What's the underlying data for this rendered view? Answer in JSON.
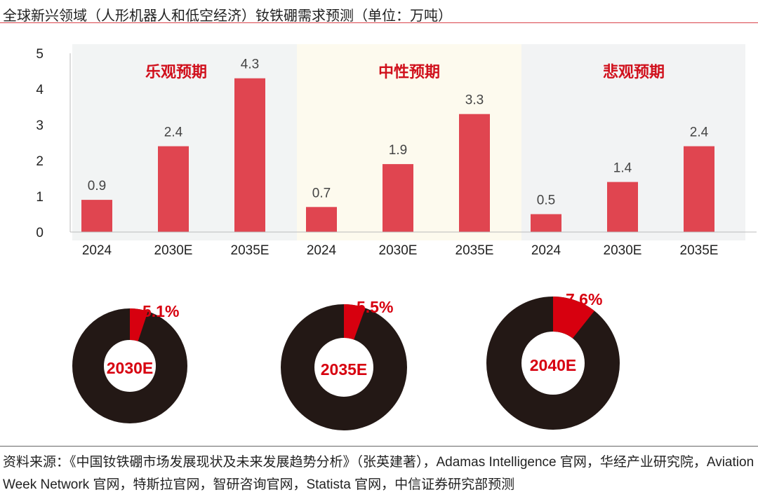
{
  "title": "全球新兴领域（人形机器人和低空经济）钕铁硼需求预测（单位：万吨）",
  "colors": {
    "bar": "#e04550",
    "scenario_label": "#d0101c",
    "donut_dark": "#231815",
    "donut_red": "#d7000f",
    "axis": "#222"
  },
  "chart_data": [
    {
      "type": "bar",
      "title": "",
      "ylim": [
        0,
        5
      ],
      "yticks": [
        0,
        1,
        2,
        3,
        4,
        5
      ],
      "grid": false,
      "groups": [
        {
          "name": "乐观预期",
          "background": "#f2f4f4",
          "categories": [
            "2024",
            "2030E",
            "2035E"
          ],
          "values": [
            0.9,
            2.4,
            4.3
          ],
          "labels": [
            "0.9",
            "2.4",
            "4.3"
          ]
        },
        {
          "name": "中性预期",
          "background": "#fdfaee",
          "categories": [
            "2024",
            "2030E",
            "2035E"
          ],
          "values": [
            0.7,
            1.9,
            3.3
          ],
          "labels": [
            "0.7",
            "1.9",
            "3.3"
          ]
        },
        {
          "name": "悲观预期",
          "background": "#f2f3f4",
          "categories": [
            "2024",
            "2030E",
            "2035E"
          ],
          "values": [
            0.5,
            1.4,
            2.4
          ],
          "labels": [
            "0.5",
            "1.4",
            "2.4"
          ]
        }
      ]
    },
    {
      "type": "pie",
      "donuts": [
        {
          "center_label": "2030E",
          "value": 5.1,
          "label": "5.1%"
        },
        {
          "center_label": "2035E",
          "value": 5.5,
          "label": "5.5%"
        },
        {
          "center_label": "2040E",
          "value": 7.6,
          "label": "7.6%"
        }
      ]
    }
  ],
  "footer": "资料来源：《中国钕铁硼市场发展现状及未来发展趋势分析》（张英建著），Adamas Intelligence 官网，华经产业研究院，Aviation Week Network 官网，特斯拉官网，智研咨询官网，Statista 官网，中信证券研究部预测"
}
